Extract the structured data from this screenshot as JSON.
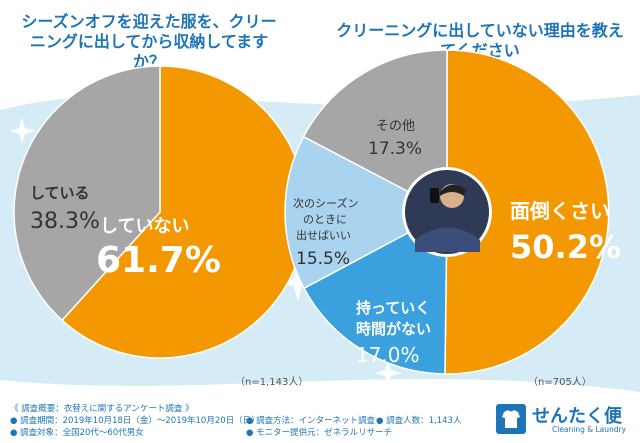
{
  "titles": {
    "q1": "シーズンオフを迎えた服を、クリーニングに出してから収納してますか？",
    "q2": "クリーニングに出していない理由を教えてください"
  },
  "colors": {
    "orange": "#f39800",
    "orange_light": "#fbc02d",
    "gray": "#a6a6a6",
    "blue_light": "#a9d3ee",
    "blue": "#3aa0de",
    "title_blue": "#1d75b8"
  },
  "chart_data": [
    {
      "type": "pie",
      "title": "シーズンオフを迎えた服を、クリーニングに出してから収納してますか？",
      "slices": [
        {
          "label": "していない",
          "value": 61.7,
          "display": "61.7%"
        },
        {
          "label": "している",
          "value": 38.3,
          "display": "38.3%"
        }
      ],
      "note": "（n=1,143人）"
    },
    {
      "type": "pie",
      "title": "クリーニングに出していない理由を教えてください",
      "slices": [
        {
          "label": "面倒くさい",
          "value": 50.2,
          "display": "50.2%"
        },
        {
          "label": "持っていく時間がない",
          "value": 17.0,
          "display": "17.0%"
        },
        {
          "label": "次のシーズンのときに出せばいい",
          "value": 15.5,
          "display": "15.5%"
        },
        {
          "label": "その他",
          "value": 17.3,
          "display": "17.3%"
        }
      ],
      "note": "（n=705人）"
    }
  ],
  "labels": {
    "p1_a_name": "していない",
    "p1_a_val": "61.7%",
    "p1_b_name": "している",
    "p1_b_val": "38.3%",
    "p2_a_name": "面倒くさい",
    "p2_a_val": "50.2%",
    "p2_b_name_1": "持っていく",
    "p2_b_name_2": "時間がない",
    "p2_b_val": "17.0%",
    "p2_c_name_1": "次のシーズン",
    "p2_c_name_2": "のときに",
    "p2_c_name_3": "出せばいい",
    "p2_c_val": "15.5%",
    "p2_d_name": "その他",
    "p2_d_val": "17.3%"
  },
  "notes": {
    "n1": "（n=1,143人）",
    "n2": "（n=705人）"
  },
  "footer": {
    "line1": "《 調査概要：衣替えに関するアンケート調査 》",
    "period": "● 調査期間：2019年10月18日（金）〜2019年10月20日（日）",
    "method": "● 調査方法：インターネット調査",
    "count": "● 調査人数：1,143人",
    "target": "● 調査対象：全国20代〜60代男女",
    "provider": "● モニター提供元：ゼネラルリサーチ"
  },
  "brand": {
    "name": "せんたく便",
    "sub": "Cleaning & Laundry"
  }
}
